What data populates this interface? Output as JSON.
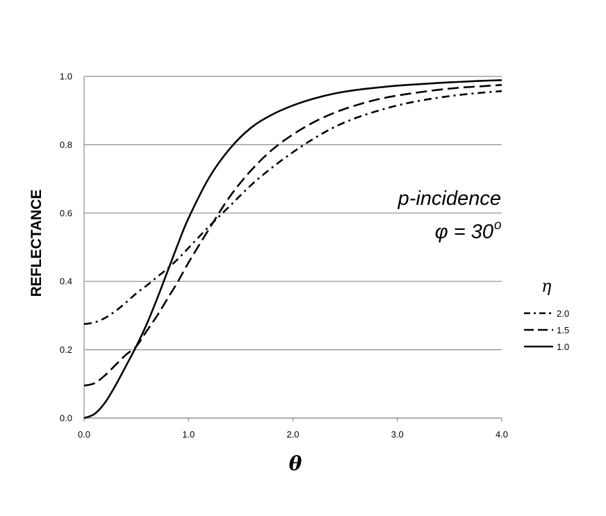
{
  "chart_data": {
    "type": "line",
    "xlabel": "θ",
    "ylabel": "REFLECTANCE",
    "xlim": [
      0,
      4
    ],
    "ylim": [
      0,
      1
    ],
    "x_ticks": [
      "0.0",
      "1.0",
      "2.0",
      "3.0",
      "4.0"
    ],
    "y_ticks": [
      "0.0",
      "0.2",
      "0.4",
      "0.6",
      "0.8",
      "1.0"
    ],
    "grid": "horizontal",
    "annotation": {
      "line1": "p-incidence",
      "line2_prefix": "φ = 30",
      "line2_sup": "o"
    },
    "legend": {
      "title": "η",
      "placement": "right"
    },
    "x": [
      0.0,
      0.1,
      0.2,
      0.3,
      0.4,
      0.5,
      0.6,
      0.7,
      0.8,
      0.9,
      1.0,
      1.2,
      1.4,
      1.6,
      1.8,
      2.0,
      2.2,
      2.4,
      2.6,
      2.8,
      3.0,
      3.2,
      3.4,
      3.6,
      3.8,
      4.0
    ],
    "series": [
      {
        "name": "2.0",
        "style": "dash-dot",
        "values": [
          0.275,
          0.28,
          0.293,
          0.313,
          0.338,
          0.365,
          0.388,
          0.413,
          0.438,
          0.466,
          0.498,
          0.562,
          0.622,
          0.682,
          0.733,
          0.778,
          0.818,
          0.852,
          0.878,
          0.898,
          0.915,
          0.928,
          0.938,
          0.946,
          0.952,
          0.957
        ]
      },
      {
        "name": "1.5",
        "style": "dashed",
        "values": [
          0.095,
          0.102,
          0.125,
          0.155,
          0.185,
          0.21,
          0.255,
          0.3,
          0.35,
          0.4,
          0.455,
          0.555,
          0.65,
          0.725,
          0.785,
          0.83,
          0.866,
          0.894,
          0.915,
          0.932,
          0.944,
          0.953,
          0.961,
          0.967,
          0.971,
          0.975
        ]
      },
      {
        "name": "1.0",
        "style": "solid",
        "values": [
          0.0,
          0.012,
          0.045,
          0.095,
          0.152,
          0.21,
          0.275,
          0.35,
          0.43,
          0.51,
          0.585,
          0.705,
          0.79,
          0.85,
          0.888,
          0.915,
          0.935,
          0.95,
          0.96,
          0.967,
          0.973,
          0.977,
          0.981,
          0.984,
          0.987,
          0.989
        ]
      }
    ]
  }
}
